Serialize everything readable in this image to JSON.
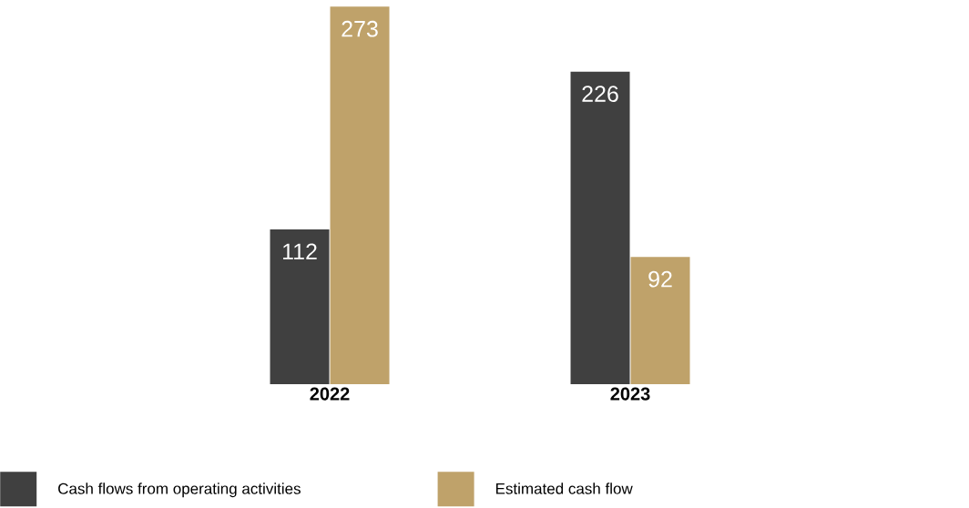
{
  "chart_data": {
    "type": "bar",
    "categories": [
      "2022",
      "2023"
    ],
    "series": [
      {
        "name": "Cash flows from operating activities",
        "color": "#404040",
        "values": [
          112,
          226
        ]
      },
      {
        "name": "Estimated cash flow",
        "color": "#bfa26a",
        "values": [
          273,
          92
        ]
      }
    ],
    "data_labels": true,
    "legend": "bottom"
  }
}
